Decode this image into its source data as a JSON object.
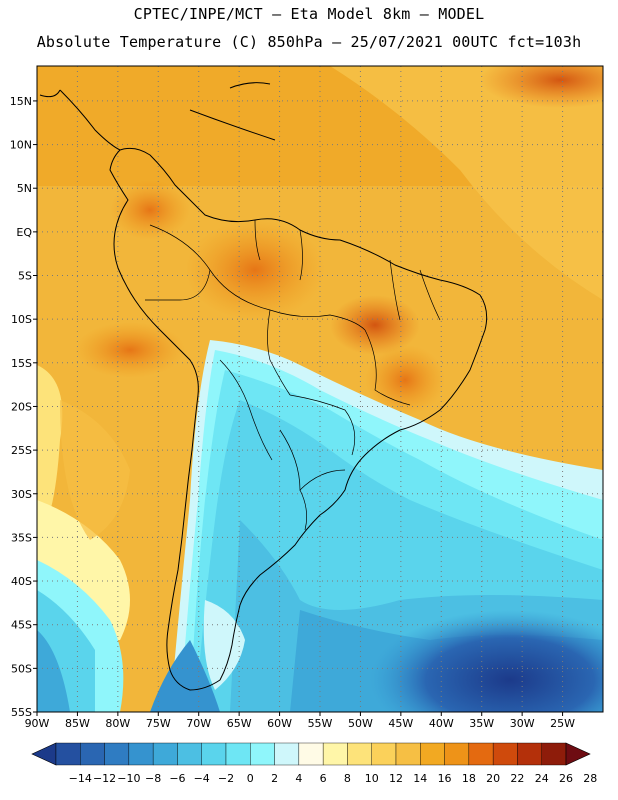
{
  "title": {
    "line1": "CPTEC/INPE/MCT –  Eta Model 8km – MODEL",
    "line2": "Absolute Temperature (C) 850hPa – 25/07/2021 00UTC fct=103h"
  },
  "map": {
    "lat_labels": [
      "15N",
      "10N",
      "5N",
      "EQ",
      "5S",
      "10S",
      "15S",
      "20S",
      "25S",
      "30S",
      "35S",
      "40S",
      "45S",
      "50S",
      "55S"
    ],
    "lon_labels": [
      "90W",
      "85W",
      "80W",
      "75W",
      "70W",
      "65W",
      "60W",
      "55W",
      "50W",
      "45W",
      "40W",
      "35W",
      "30W",
      "25W"
    ],
    "lat_range": [
      -55,
      19
    ],
    "lon_range": [
      -90,
      -20
    ]
  },
  "colorbar": {
    "labels": [
      "-14",
      "-12",
      "-10",
      "-8",
      "-6",
      "-4",
      "-2",
      "0",
      "2",
      "4",
      "6",
      "8",
      "10",
      "12",
      "14",
      "16",
      "18",
      "20",
      "22",
      "24",
      "26",
      "28"
    ],
    "colors": [
      "#1c3a8a",
      "#2450a0",
      "#2a66b2",
      "#2f7cc2",
      "#3593cf",
      "#3ea9d9",
      "#4cbfe3",
      "#5ad4ec",
      "#6ee6f4",
      "#8ff6fb",
      "#cff7fb",
      "#fffbe6",
      "#fff6a8",
      "#fde37a",
      "#fbd15a",
      "#f6bf44",
      "#f2a922",
      "#ee9318",
      "#e46a10",
      "#cf4a0c",
      "#b4300a",
      "#8e1c0a",
      "#6e0c12"
    ]
  }
}
